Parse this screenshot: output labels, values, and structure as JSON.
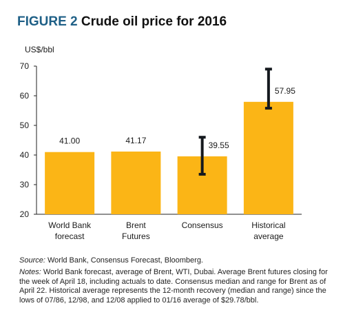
{
  "figure": {
    "number": "FIGURE 2",
    "title": "Crude oil price for 2016"
  },
  "chart_data": {
    "type": "bar",
    "title": "Crude oil price for 2016",
    "ylabel": "US$/bbl",
    "xlabel": "",
    "ylim": [
      20,
      70
    ],
    "yticks": [
      20,
      30,
      40,
      50,
      60,
      70
    ],
    "grid": false,
    "categories": [
      [
        "World Bank",
        "forecast"
      ],
      [
        "Brent",
        "Futures"
      ],
      [
        "Consensus"
      ],
      [
        "Historical",
        "average"
      ]
    ],
    "values": [
      41.0,
      41.17,
      39.55,
      57.95
    ],
    "data_labels": [
      "41.00",
      "41.17",
      "39.55",
      "57.95"
    ],
    "ranges": [
      null,
      null,
      [
        33.5,
        46.0
      ],
      [
        55.8,
        69.0
      ]
    ],
    "bar_color": "#fbb516",
    "range_color": "#15191e"
  },
  "notes": {
    "source_label": "Source:",
    "source_text": " World Bank, Consensus Forecast, Bloomberg.",
    "notes_label": "Notes:",
    "notes_text": " World Bank forecast, average of Brent, WTI, Dubai. Average Brent futures closing for the week of April 18, including actuals to date. Consensus median and range for Brent as of April 22. Historical average represents the 12-month recovery (median and range) since the lows of 07/86, 12/98, and 12/08 applied to 01/16 average of $29.78/bbl."
  }
}
